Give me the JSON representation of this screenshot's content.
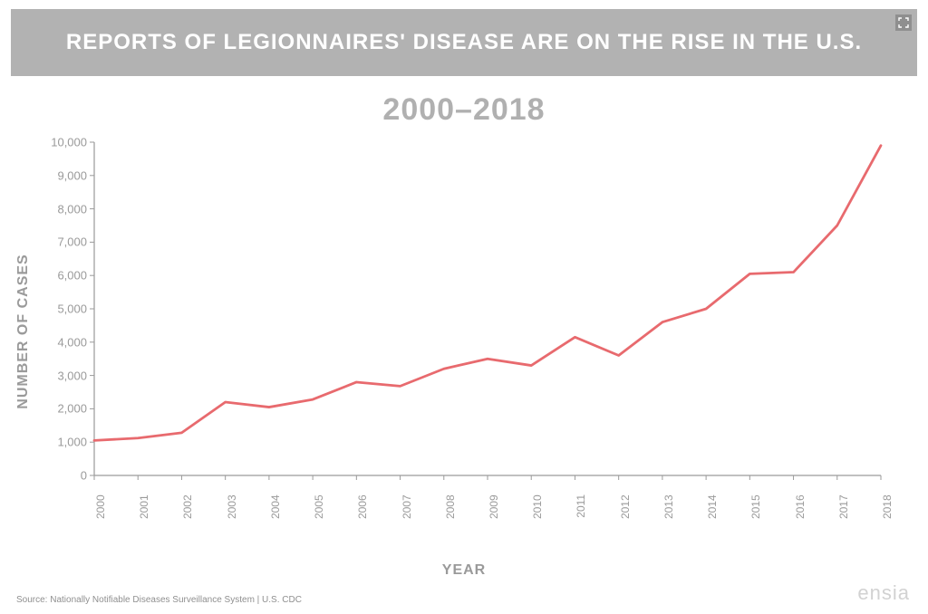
{
  "header": {
    "title": "REPORTS OF LEGIONNAIRES' DISEASE ARE ON THE RISE IN THE U.S.",
    "subtitle": "2000–2018",
    "expand_icon": "expand-icon"
  },
  "chart": {
    "type": "line",
    "x_label": "YEAR",
    "y_label": "NUMBER OF CASES",
    "line_color": "#e86a6e",
    "line_width": 2.8,
    "axis_color": "#9a9a9a",
    "tick_font_size": 13,
    "label_font_size": 16,
    "background_color": "#ffffff",
    "xlim": [
      2000,
      2018
    ],
    "ylim": [
      0,
      10000
    ],
    "y_ticks": [
      0,
      1000,
      2000,
      3000,
      4000,
      5000,
      6000,
      7000,
      8000,
      9000,
      10000
    ],
    "y_tick_labels": [
      "0",
      "1,000",
      "2,000",
      "3,000",
      "4,000",
      "5,000",
      "6,000",
      "7,000",
      "8,000",
      "9,000",
      "10,000"
    ],
    "x_ticks": [
      2000,
      2001,
      2002,
      2003,
      2004,
      2005,
      2006,
      2007,
      2008,
      2009,
      2010,
      2011,
      2012,
      2013,
      2014,
      2015,
      2016,
      2017,
      2018
    ],
    "x_tick_labels": [
      "2000",
      "2001",
      "2002",
      "2003",
      "2004",
      "2005",
      "2006",
      "2007",
      "2008",
      "2009",
      "2010",
      "2011",
      "2012",
      "2013",
      "2014",
      "2015",
      "2016",
      "2017",
      "2018"
    ],
    "series": {
      "x": [
        2000,
        2001,
        2002,
        2003,
        2004,
        2005,
        2006,
        2007,
        2008,
        2009,
        2010,
        2011,
        2012,
        2013,
        2014,
        2015,
        2016,
        2017,
        2018
      ],
      "y": [
        1050,
        1120,
        1280,
        2200,
        2050,
        2280,
        2800,
        2680,
        3200,
        3500,
        3300,
        4150,
        3600,
        4600,
        5000,
        6050,
        6100,
        7500,
        9900
      ]
    }
  },
  "footer": {
    "source": "Source: Nationally Notifiable Diseases Surveillance System | U.S. CDC",
    "brand": "ensia"
  }
}
